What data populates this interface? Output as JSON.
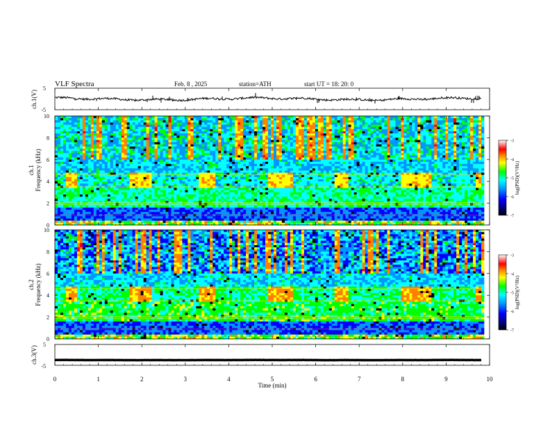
{
  "header": {
    "title": "VLF  Spectra",
    "date": "Feb. 8  , 2025",
    "station": "station=ATH",
    "start": "start  UT  =    18: 20: 0"
  },
  "chart_data": [
    {
      "type": "line",
      "panel": "ch1-waveform",
      "ylabel": "ch.1(V)",
      "yticks": [
        "5",
        "-5"
      ],
      "ylim": [
        -5,
        5
      ],
      "xlim": [
        0,
        10
      ],
      "baseline": 0,
      "color": "#000000"
    },
    {
      "type": "heatmap",
      "panel": "ch1-spectrogram",
      "ylabel": "ch.1\nFrequency  (kHz)",
      "yticks": [
        "0",
        "2",
        "4",
        "6",
        "8",
        "10"
      ],
      "ylim": [
        0,
        10
      ],
      "xlim": [
        0,
        10
      ],
      "colorbar": {
        "label": "log(PSD)(V²/Hz)",
        "ticks": [
          "-3",
          "-4",
          "-5",
          "-6",
          "-7"
        ],
        "range": [
          -7,
          -3
        ],
        "colors": [
          "#000000",
          "#000080",
          "#0000ff",
          "#0096ff",
          "#00ffff",
          "#00ff00",
          "#ffff00",
          "#ff8000",
          "#ff0000",
          "#ffffff"
        ]
      }
    },
    {
      "type": "heatmap",
      "panel": "ch2-spectrogram",
      "ylabel": "ch.2\nFrequency  (kHz)",
      "yticks": [
        "0",
        "2",
        "4",
        "6",
        "8",
        "10"
      ],
      "ylim": [
        0,
        10
      ],
      "xlim": [
        0,
        10
      ],
      "colorbar": {
        "label": "log(PSD)(V²/Hz)",
        "ticks": [
          "-3",
          "-4",
          "-5",
          "-6",
          "-7"
        ],
        "range": [
          -7,
          -3
        ]
      }
    },
    {
      "type": "line",
      "panel": "ch3-waveform",
      "ylabel": "ch.3(V)",
      "yticks": [
        "5",
        "-5"
      ],
      "ylim": [
        -5,
        5
      ],
      "xlim": [
        0,
        10
      ],
      "baseline": -2.5,
      "color": "#000000"
    }
  ],
  "xaxis": {
    "label": "Time  (min)",
    "ticks": [
      "0",
      "1",
      "2",
      "3",
      "4",
      "5",
      "6",
      "7",
      "8",
      "9",
      "10"
    ],
    "range": [
      0,
      10
    ]
  }
}
